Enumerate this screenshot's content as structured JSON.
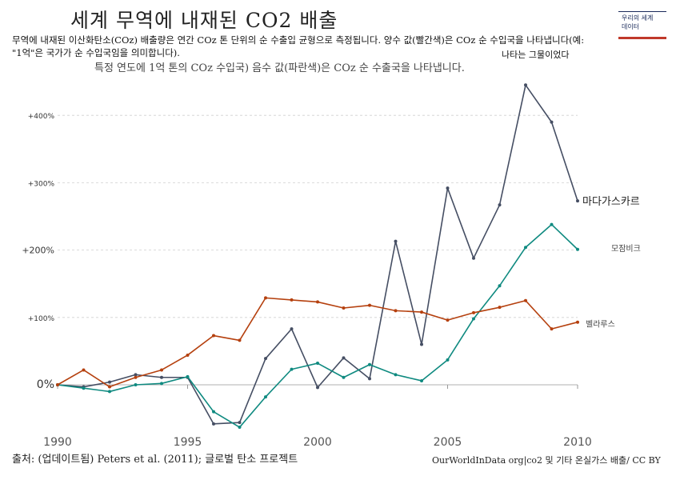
{
  "title": "세계 무역에 내재된 CO2 배출",
  "subtitle": "무역에 내재된 이산화탄소(COz) 배출량은 연간 COz 톤 단위의 순 수출입 균형으로 측정됩니다. 양수 값(빨간색)은 COz 순 수입국을 나타냅니다(예: \"1억\"은 국가가 순 수입국임을 의미합니다).",
  "subtitle_line2": "특정 연도에 1억 톤의 COz 수입국) 음수 값(파란색)은 COz 순 수출국을 나타냅니다.",
  "subtitle_line3": "나타는 그물이었다",
  "logo": {
    "line1": "우리의 세계",
    "line2": "데이터"
  },
  "source": "출처: (업데이트됨) Peters et al. (2011); 글로벌 탄소 프로젝트",
  "credit": "OurWorldInData org|co2 및 기타 온실가스 배출/ CC BY",
  "colors": {
    "madagascar": "#454e63",
    "mozambique": "#0f8a80",
    "belarus": "#b5400e",
    "grid": "#d0d0d0",
    "zero": "#b0b0b0"
  },
  "chart_data": {
    "type": "line",
    "x": [
      1990,
      1991,
      1992,
      1993,
      1994,
      1995,
      1996,
      1997,
      1998,
      1999,
      2000,
      2001,
      2002,
      2003,
      2004,
      2005,
      2006,
      2007,
      2008,
      2009,
      2010
    ],
    "xticks": [
      1990,
      1995,
      2000,
      2005,
      2010
    ],
    "xtick_labels": [
      "1990",
      "1995",
      "2000",
      "2005",
      "2010"
    ],
    "yticks": [
      0,
      100,
      200,
      300,
      400
    ],
    "ytick_labels": [
      "0%",
      "+100%",
      "+200%",
      "+300%",
      "+400%"
    ],
    "xlim": [
      1990,
      2010
    ],
    "ylim": [
      -90,
      460
    ],
    "grid": true,
    "series": [
      {
        "name": "마다가스카르",
        "color_key": "madagascar",
        "values": [
          0,
          -3,
          4,
          15,
          11,
          11,
          -58,
          -56,
          39,
          83,
          -4,
          40,
          9,
          213,
          60,
          292,
          188,
          267,
          445,
          390,
          273
        ]
      },
      {
        "name": "모잠비크",
        "color_key": "mozambique",
        "values": [
          0,
          -5,
          -10,
          0,
          2,
          12,
          -40,
          -63,
          -18,
          23,
          32,
          11,
          30,
          15,
          6,
          37,
          98,
          147,
          204,
          238,
          201
        ]
      },
      {
        "name": "벨라루스",
        "color_key": "belarus",
        "values": [
          0,
          22,
          -3,
          11,
          22,
          44,
          73,
          66,
          129,
          126,
          123,
          114,
          118,
          110,
          108,
          96,
          107,
          115,
          125,
          83,
          93
        ]
      }
    ]
  }
}
